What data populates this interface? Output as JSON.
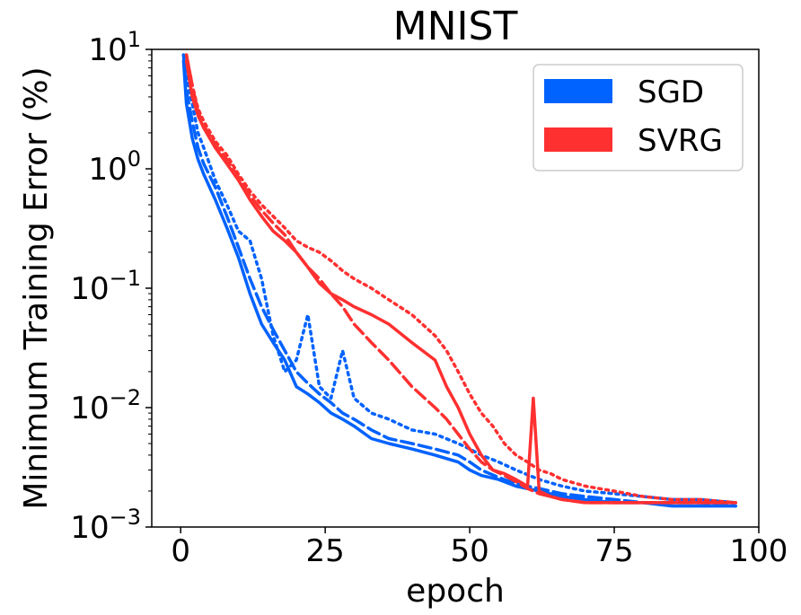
{
  "chart_data": {
    "type": "line",
    "title": "MNIST",
    "xlabel": "epoch",
    "ylabel": "Minimum Training Error (%)",
    "xlim": [
      -5,
      100
    ],
    "ylim": [
      0.001,
      10
    ],
    "yscale": "log",
    "xticks": [
      0,
      25,
      50,
      75,
      100
    ],
    "xtick_labels": [
      "0",
      "25",
      "50",
      "75",
      "100"
    ],
    "yticks": [
      {
        "value": 10,
        "base": "10",
        "exp": "1"
      },
      {
        "value": 1,
        "base": "10",
        "exp": "0"
      },
      {
        "value": 0.1,
        "base": "10",
        "exp": "−1"
      },
      {
        "value": 0.01,
        "base": "10",
        "exp": "−2"
      },
      {
        "value": 0.001,
        "base": "10",
        "exp": "−3"
      }
    ],
    "legend": {
      "placement": "top-right",
      "entries": [
        {
          "label": "SGD",
          "color": "#0062ff"
        },
        {
          "label": "SVRG",
          "color": "#ff3030"
        }
      ]
    },
    "series": [
      {
        "group": "SGD",
        "color": "#0062ff",
        "style": "solid",
        "x": [
          0.5,
          1,
          2,
          3,
          4,
          6,
          8,
          10,
          12,
          14,
          16,
          18,
          20,
          22,
          24,
          26,
          28,
          30,
          33,
          36,
          40,
          44,
          48,
          50,
          52,
          55,
          58,
          62,
          66,
          70,
          75,
          80,
          85,
          90,
          96
        ],
        "y": [
          8,
          3.5,
          1.8,
          1.2,
          0.9,
          0.55,
          0.32,
          0.18,
          0.09,
          0.05,
          0.035,
          0.025,
          0.015,
          0.013,
          0.011,
          0.009,
          0.008,
          0.007,
          0.0055,
          0.005,
          0.0045,
          0.004,
          0.0035,
          0.003,
          0.0027,
          0.0025,
          0.0022,
          0.002,
          0.0018,
          0.0017,
          0.0016,
          0.0016,
          0.0015,
          0.0015,
          0.0015
        ]
      },
      {
        "group": "SGD",
        "color": "#0062ff",
        "style": "dashed",
        "x": [
          0.5,
          1,
          2,
          3,
          4,
          6,
          8,
          10,
          12,
          14,
          16,
          18,
          20,
          22,
          24,
          26,
          28,
          30,
          33,
          36,
          40,
          44,
          48,
          50,
          52,
          55,
          58,
          62,
          66,
          70,
          75,
          80,
          85,
          90,
          96
        ],
        "y": [
          9,
          4.5,
          2.5,
          1.5,
          1.1,
          0.7,
          0.4,
          0.22,
          0.12,
          0.07,
          0.045,
          0.03,
          0.02,
          0.016,
          0.013,
          0.011,
          0.009,
          0.008,
          0.0065,
          0.0055,
          0.005,
          0.0045,
          0.004,
          0.0035,
          0.003,
          0.0026,
          0.0023,
          0.0021,
          0.0019,
          0.0018,
          0.0017,
          0.0016,
          0.0016,
          0.0016,
          0.0015
        ]
      },
      {
        "group": "SGD",
        "color": "#0062ff",
        "style": "dotted",
        "x": [
          0.5,
          1,
          2,
          3,
          4,
          6,
          8,
          10,
          12,
          14,
          16,
          18,
          20,
          22,
          24,
          26,
          28,
          30,
          33,
          36,
          40,
          44,
          48,
          50,
          52,
          55,
          58,
          62,
          66,
          70,
          75,
          80,
          85,
          90,
          96
        ],
        "y": [
          9,
          6,
          3.5,
          2,
          1.5,
          0.8,
          0.5,
          0.3,
          0.25,
          0.12,
          0.04,
          0.02,
          0.025,
          0.06,
          0.015,
          0.012,
          0.03,
          0.012,
          0.009,
          0.008,
          0.0065,
          0.006,
          0.005,
          0.0045,
          0.004,
          0.0035,
          0.003,
          0.0025,
          0.0022,
          0.002,
          0.0019,
          0.0018,
          0.0017,
          0.0017,
          0.0016
        ]
      },
      {
        "group": "SVRG",
        "color": "#ff3030",
        "style": "solid",
        "x": [
          1,
          2,
          3,
          4,
          6,
          8,
          10,
          12,
          14,
          16,
          18,
          20,
          22,
          24,
          26,
          28,
          30,
          33,
          36,
          40,
          44,
          46,
          48,
          50,
          52,
          54,
          56,
          58,
          60,
          61,
          62,
          64,
          66,
          70,
          75,
          80,
          85,
          90,
          96
        ],
        "y": [
          8,
          4,
          2.8,
          2.2,
          1.5,
          1.1,
          0.8,
          0.55,
          0.4,
          0.3,
          0.25,
          0.2,
          0.15,
          0.11,
          0.09,
          0.08,
          0.07,
          0.06,
          0.05,
          0.035,
          0.025,
          0.015,
          0.01,
          0.006,
          0.004,
          0.003,
          0.0028,
          0.0025,
          0.0022,
          0.012,
          0.002,
          0.0018,
          0.0017,
          0.0016,
          0.0016,
          0.0016,
          0.0016,
          0.0016,
          0.0016
        ]
      },
      {
        "group": "SVRG",
        "color": "#ff3030",
        "style": "dashed",
        "x": [
          1,
          2,
          3,
          4,
          6,
          8,
          10,
          12,
          14,
          16,
          18,
          20,
          22,
          24,
          26,
          28,
          30,
          33,
          36,
          40,
          44,
          46,
          48,
          50,
          52,
          54,
          56,
          58,
          60,
          62,
          64,
          66,
          70,
          75,
          80,
          85,
          90,
          96
        ],
        "y": [
          9,
          5,
          3,
          2.3,
          1.6,
          1.2,
          0.85,
          0.6,
          0.45,
          0.35,
          0.28,
          0.2,
          0.15,
          0.12,
          0.09,
          0.07,
          0.05,
          0.035,
          0.025,
          0.015,
          0.01,
          0.008,
          0.006,
          0.0045,
          0.0035,
          0.003,
          0.0027,
          0.0024,
          0.0021,
          0.0019,
          0.0018,
          0.0017,
          0.0016,
          0.0016,
          0.0016,
          0.0016,
          0.0016,
          0.0016
        ]
      },
      {
        "group": "SVRG",
        "color": "#ff3030",
        "style": "dotted",
        "x": [
          1,
          2,
          3,
          4,
          6,
          8,
          10,
          12,
          14,
          16,
          18,
          20,
          22,
          24,
          26,
          28,
          30,
          33,
          36,
          40,
          44,
          46,
          48,
          50,
          52,
          54,
          56,
          58,
          60,
          62,
          64,
          66,
          70,
          75,
          80,
          85,
          90,
          96
        ],
        "y": [
          9,
          5,
          3.2,
          2.5,
          1.7,
          1.3,
          0.9,
          0.65,
          0.5,
          0.4,
          0.32,
          0.25,
          0.22,
          0.2,
          0.17,
          0.14,
          0.12,
          0.1,
          0.08,
          0.06,
          0.04,
          0.03,
          0.02,
          0.013,
          0.009,
          0.007,
          0.005,
          0.004,
          0.0035,
          0.003,
          0.0028,
          0.0025,
          0.0022,
          0.002,
          0.0018,
          0.0017,
          0.0017,
          0.0016
        ]
      }
    ]
  }
}
